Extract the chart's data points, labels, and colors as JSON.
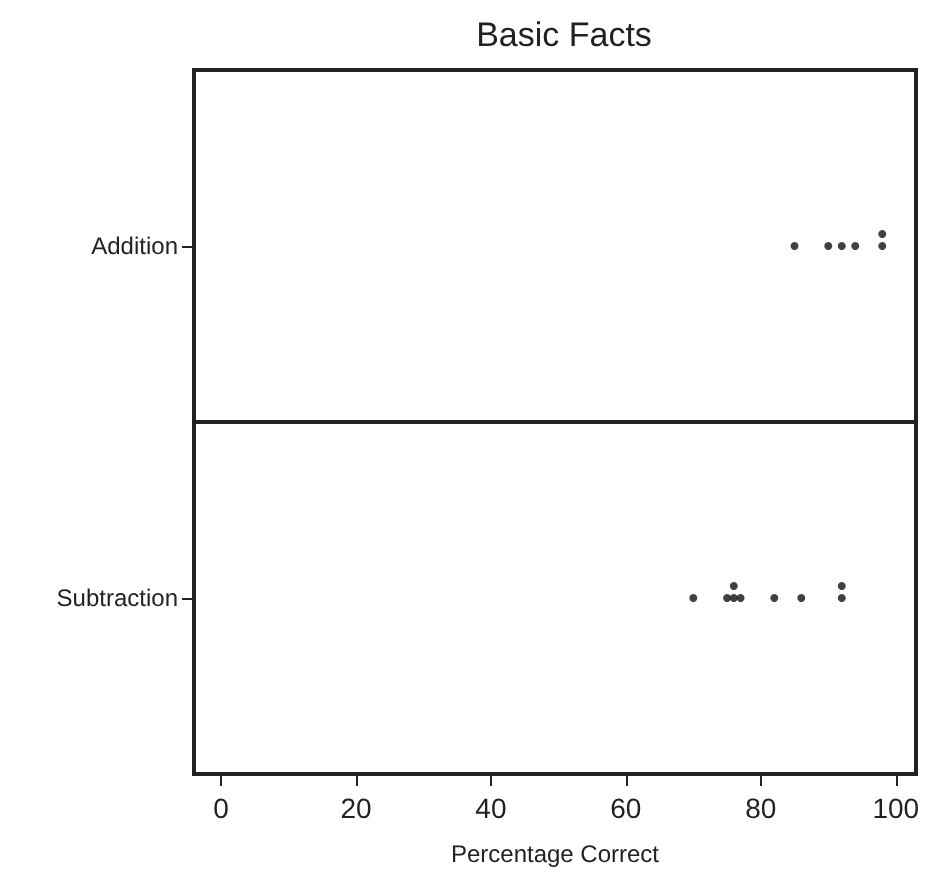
{
  "chart_data": {
    "type": "scatter",
    "orientation": "horizontal",
    "title": "Basic Facts",
    "xlabel": "Percentage Correct",
    "categories": [
      "Addition",
      "Subtraction"
    ],
    "xlim": [
      -4,
      103
    ],
    "xticks": [
      0,
      20,
      40,
      60,
      80,
      100
    ],
    "grid": "y",
    "marker": "circle",
    "series": [
      {
        "color": "#111111",
        "x": [
          "Addition",
          "Addition",
          "Addition",
          "Addition",
          "Addition",
          "Addition"
        ],
        "values": [
          85,
          90,
          92,
          94,
          98,
          98
        ]
      },
      {
        "color": "#111111",
        "x": [
          "Subtraction",
          "Subtraction",
          "Subtraction",
          "Subtraction",
          "Subtraction",
          "Subtraction",
          "Subtraction",
          "Subtraction",
          "Subtraction"
        ],
        "values": [
          70,
          75,
          76,
          76,
          77,
          82,
          86,
          92,
          92
        ]
      }
    ]
  }
}
